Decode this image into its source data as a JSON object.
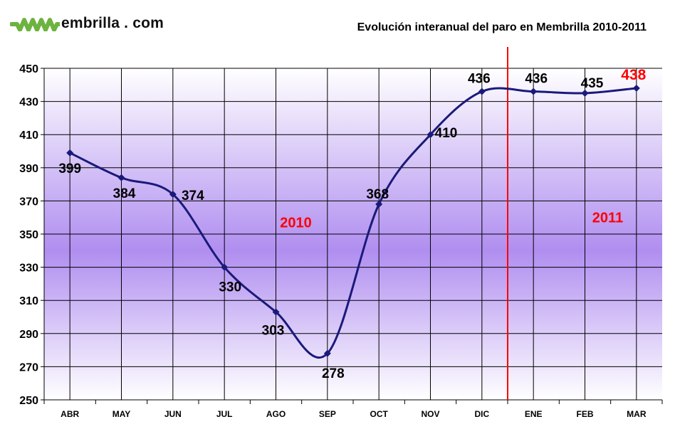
{
  "logo": {
    "icon": "m-logo-icon",
    "text": "embrilla . com",
    "icon_color": "#6db33f"
  },
  "colors": {
    "line": "#1a1a7a",
    "divider": "#ff0000",
    "highlight": "#ff0000",
    "plot_top": "#ffffff",
    "plot_mid": "#b08ef0"
  },
  "chart_data": {
    "type": "line",
    "title": "Evolución interanual del paro en Membrilla 2010-2011",
    "categories": [
      "ABR",
      "MAY",
      "JUN",
      "JUL",
      "AGO",
      "SEP",
      "OCT",
      "NOV",
      "DIC",
      "ENE",
      "FEB",
      "MAR"
    ],
    "values": [
      399,
      384,
      374,
      330,
      303,
      278,
      368,
      410,
      436,
      436,
      435,
      438
    ],
    "data_labels": [
      "399",
      "384",
      "374",
      "330",
      "303",
      "278",
      "368",
      "410",
      "436",
      "436",
      "435",
      "438"
    ],
    "highlighted_label_index": 11,
    "smoothed": true,
    "ylim": [
      250,
      450
    ],
    "yticks": [
      250,
      270,
      290,
      310,
      330,
      350,
      370,
      390,
      410,
      430,
      450
    ],
    "ytick_labels": [
      "250",
      "270",
      "290",
      "310",
      "330",
      "350",
      "370",
      "390",
      "410",
      "430",
      "450"
    ],
    "grid": true,
    "legend": "none",
    "xlabel": "",
    "ylabel": "",
    "divider_between": [
      "DIC",
      "ENE"
    ],
    "annotations": [
      {
        "text": "2010",
        "x_category": "AGO",
        "y": 357
      },
      {
        "text": "2011",
        "x_category": "FEB",
        "y": 360
      }
    ]
  }
}
